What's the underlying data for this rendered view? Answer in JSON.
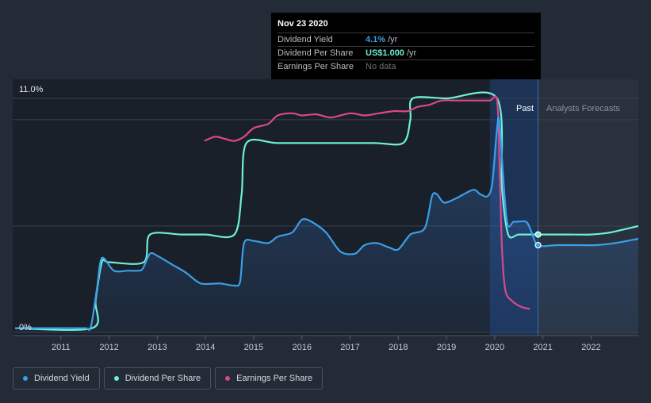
{
  "tooltip": {
    "date": "Nov 23 2020",
    "rows": [
      {
        "label": "Dividend Yield",
        "value": "4.1%",
        "unit": "/yr",
        "color": "#3a9fe8"
      },
      {
        "label": "Dividend Per Share",
        "value": "US$1.000",
        "unit": "/yr",
        "color": "#6ef0d6"
      },
      {
        "label": "Earnings Per Share",
        "value": "No data",
        "unit": "",
        "color": "#6c7078"
      }
    ]
  },
  "legend": [
    {
      "label": "Dividend Yield",
      "color": "#3a9fe8"
    },
    {
      "label": "Dividend Per Share",
      "color": "#6ef0d6"
    },
    {
      "label": "Earnings Per Share",
      "color": "#d9488b"
    }
  ],
  "regions": {
    "past": "Past",
    "forecast": "Analysts Forecasts"
  },
  "chart_data": {
    "type": "line",
    "y_labels": [
      "11.0%",
      "0%"
    ],
    "ylim": [
      0,
      11
    ],
    "xlim": [
      2010.0,
      2022.98
    ],
    "x_ticks": [
      "2011",
      "2012",
      "2013",
      "2014",
      "2015",
      "2016",
      "2017",
      "2018",
      "2019",
      "2020",
      "2021",
      "2022"
    ],
    "grid": true,
    "legend_position": "bottom-left",
    "hover_x": 2020.9,
    "forecast_start": 2020.9,
    "series": [
      {
        "name": "Dividend Yield",
        "color": "#3a9fe8",
        "unit": "%",
        "points": [
          [
            2010.05,
            0.2
          ],
          [
            2011.0,
            0.2
          ],
          [
            2011.5,
            0.2
          ],
          [
            2011.62,
            0.25
          ],
          [
            2011.75,
            2.1
          ],
          [
            2011.85,
            3.5
          ],
          [
            2012.1,
            2.9
          ],
          [
            2012.4,
            2.9
          ],
          [
            2012.6,
            2.9
          ],
          [
            2012.7,
            3.0
          ],
          [
            2012.85,
            3.7
          ],
          [
            2013.0,
            3.6
          ],
          [
            2013.3,
            3.2
          ],
          [
            2013.6,
            2.8
          ],
          [
            2013.9,
            2.3
          ],
          [
            2014.3,
            2.3
          ],
          [
            2014.6,
            2.2
          ],
          [
            2014.72,
            2.4
          ],
          [
            2014.8,
            4.2
          ],
          [
            2015.0,
            4.3
          ],
          [
            2015.3,
            4.2
          ],
          [
            2015.5,
            4.5
          ],
          [
            2015.8,
            4.7
          ],
          [
            2016.0,
            5.3
          ],
          [
            2016.2,
            5.2
          ],
          [
            2016.5,
            4.7
          ],
          [
            2016.8,
            3.8
          ],
          [
            2017.1,
            3.7
          ],
          [
            2017.3,
            4.1
          ],
          [
            2017.55,
            4.2
          ],
          [
            2017.8,
            4.0
          ],
          [
            2018.0,
            3.9
          ],
          [
            2018.25,
            4.6
          ],
          [
            2018.55,
            4.9
          ],
          [
            2018.7,
            6.4
          ],
          [
            2018.8,
            6.5
          ],
          [
            2018.95,
            6.1
          ],
          [
            2019.2,
            6.3
          ],
          [
            2019.55,
            6.7
          ],
          [
            2019.7,
            6.5
          ],
          [
            2019.85,
            6.4
          ],
          [
            2019.95,
            7.0
          ],
          [
            2020.05,
            9.6
          ],
          [
            2020.1,
            9.8
          ],
          [
            2020.25,
            5.3
          ],
          [
            2020.4,
            5.2
          ],
          [
            2020.65,
            5.2
          ],
          [
            2020.75,
            4.8
          ],
          [
            2020.9,
            4.1
          ],
          [
            2021.3,
            4.1
          ],
          [
            2021.8,
            4.1
          ],
          [
            2022.1,
            4.1
          ],
          [
            2022.5,
            4.2
          ],
          [
            2022.98,
            4.4
          ]
        ]
      },
      {
        "name": "Dividend Per Share",
        "color": "#6ef0d6",
        "unit": "US$",
        "points": [
          [
            2010.05,
            0.2
          ],
          [
            2011.65,
            0.2
          ],
          [
            2011.72,
            1.5
          ],
          [
            2011.85,
            3.3
          ],
          [
            2012.0,
            3.3
          ],
          [
            2012.72,
            3.3
          ],
          [
            2012.85,
            4.6
          ],
          [
            2013.5,
            4.6
          ],
          [
            2014.0,
            4.6
          ],
          [
            2014.6,
            4.6
          ],
          [
            2014.75,
            6.5
          ],
          [
            2014.85,
            8.9
          ],
          [
            2015.5,
            8.9
          ],
          [
            2016.5,
            8.9
          ],
          [
            2017.5,
            8.9
          ],
          [
            2018.1,
            8.9
          ],
          [
            2018.25,
            10.0
          ],
          [
            2018.3,
            11.0
          ],
          [
            2019.0,
            11.0
          ],
          [
            2020.05,
            11.0
          ],
          [
            2020.15,
            6.8
          ],
          [
            2020.28,
            4.6
          ],
          [
            2020.5,
            4.6
          ],
          [
            2020.9,
            4.6
          ],
          [
            2021.5,
            4.6
          ],
          [
            2022.0,
            4.6
          ],
          [
            2022.4,
            4.7
          ],
          [
            2022.98,
            5.0
          ]
        ]
      },
      {
        "name": "Earnings Per Share",
        "color": "#d9488b",
        "unit": "US$",
        "points": [
          [
            2013.98,
            9.0
          ],
          [
            2014.2,
            9.2
          ],
          [
            2014.4,
            9.1
          ],
          [
            2014.6,
            9.0
          ],
          [
            2014.8,
            9.2
          ],
          [
            2015.0,
            9.6
          ],
          [
            2015.3,
            9.8
          ],
          [
            2015.5,
            10.2
          ],
          [
            2015.8,
            10.3
          ],
          [
            2016.0,
            10.2
          ],
          [
            2016.3,
            10.25
          ],
          [
            2016.6,
            10.1
          ],
          [
            2017.0,
            10.3
          ],
          [
            2017.3,
            10.2
          ],
          [
            2017.6,
            10.3
          ],
          [
            2017.9,
            10.4
          ],
          [
            2018.2,
            10.4
          ],
          [
            2018.4,
            10.6
          ],
          [
            2018.65,
            10.7
          ],
          [
            2018.9,
            10.9
          ],
          [
            2019.2,
            10.9
          ],
          [
            2019.6,
            10.9
          ],
          [
            2019.9,
            10.9
          ],
          [
            2020.05,
            10.9
          ],
          [
            2020.1,
            8.0
          ],
          [
            2020.15,
            4.0
          ],
          [
            2020.22,
            2.0
          ],
          [
            2020.35,
            1.5
          ],
          [
            2020.55,
            1.2
          ],
          [
            2020.73,
            1.1
          ]
        ]
      }
    ]
  }
}
